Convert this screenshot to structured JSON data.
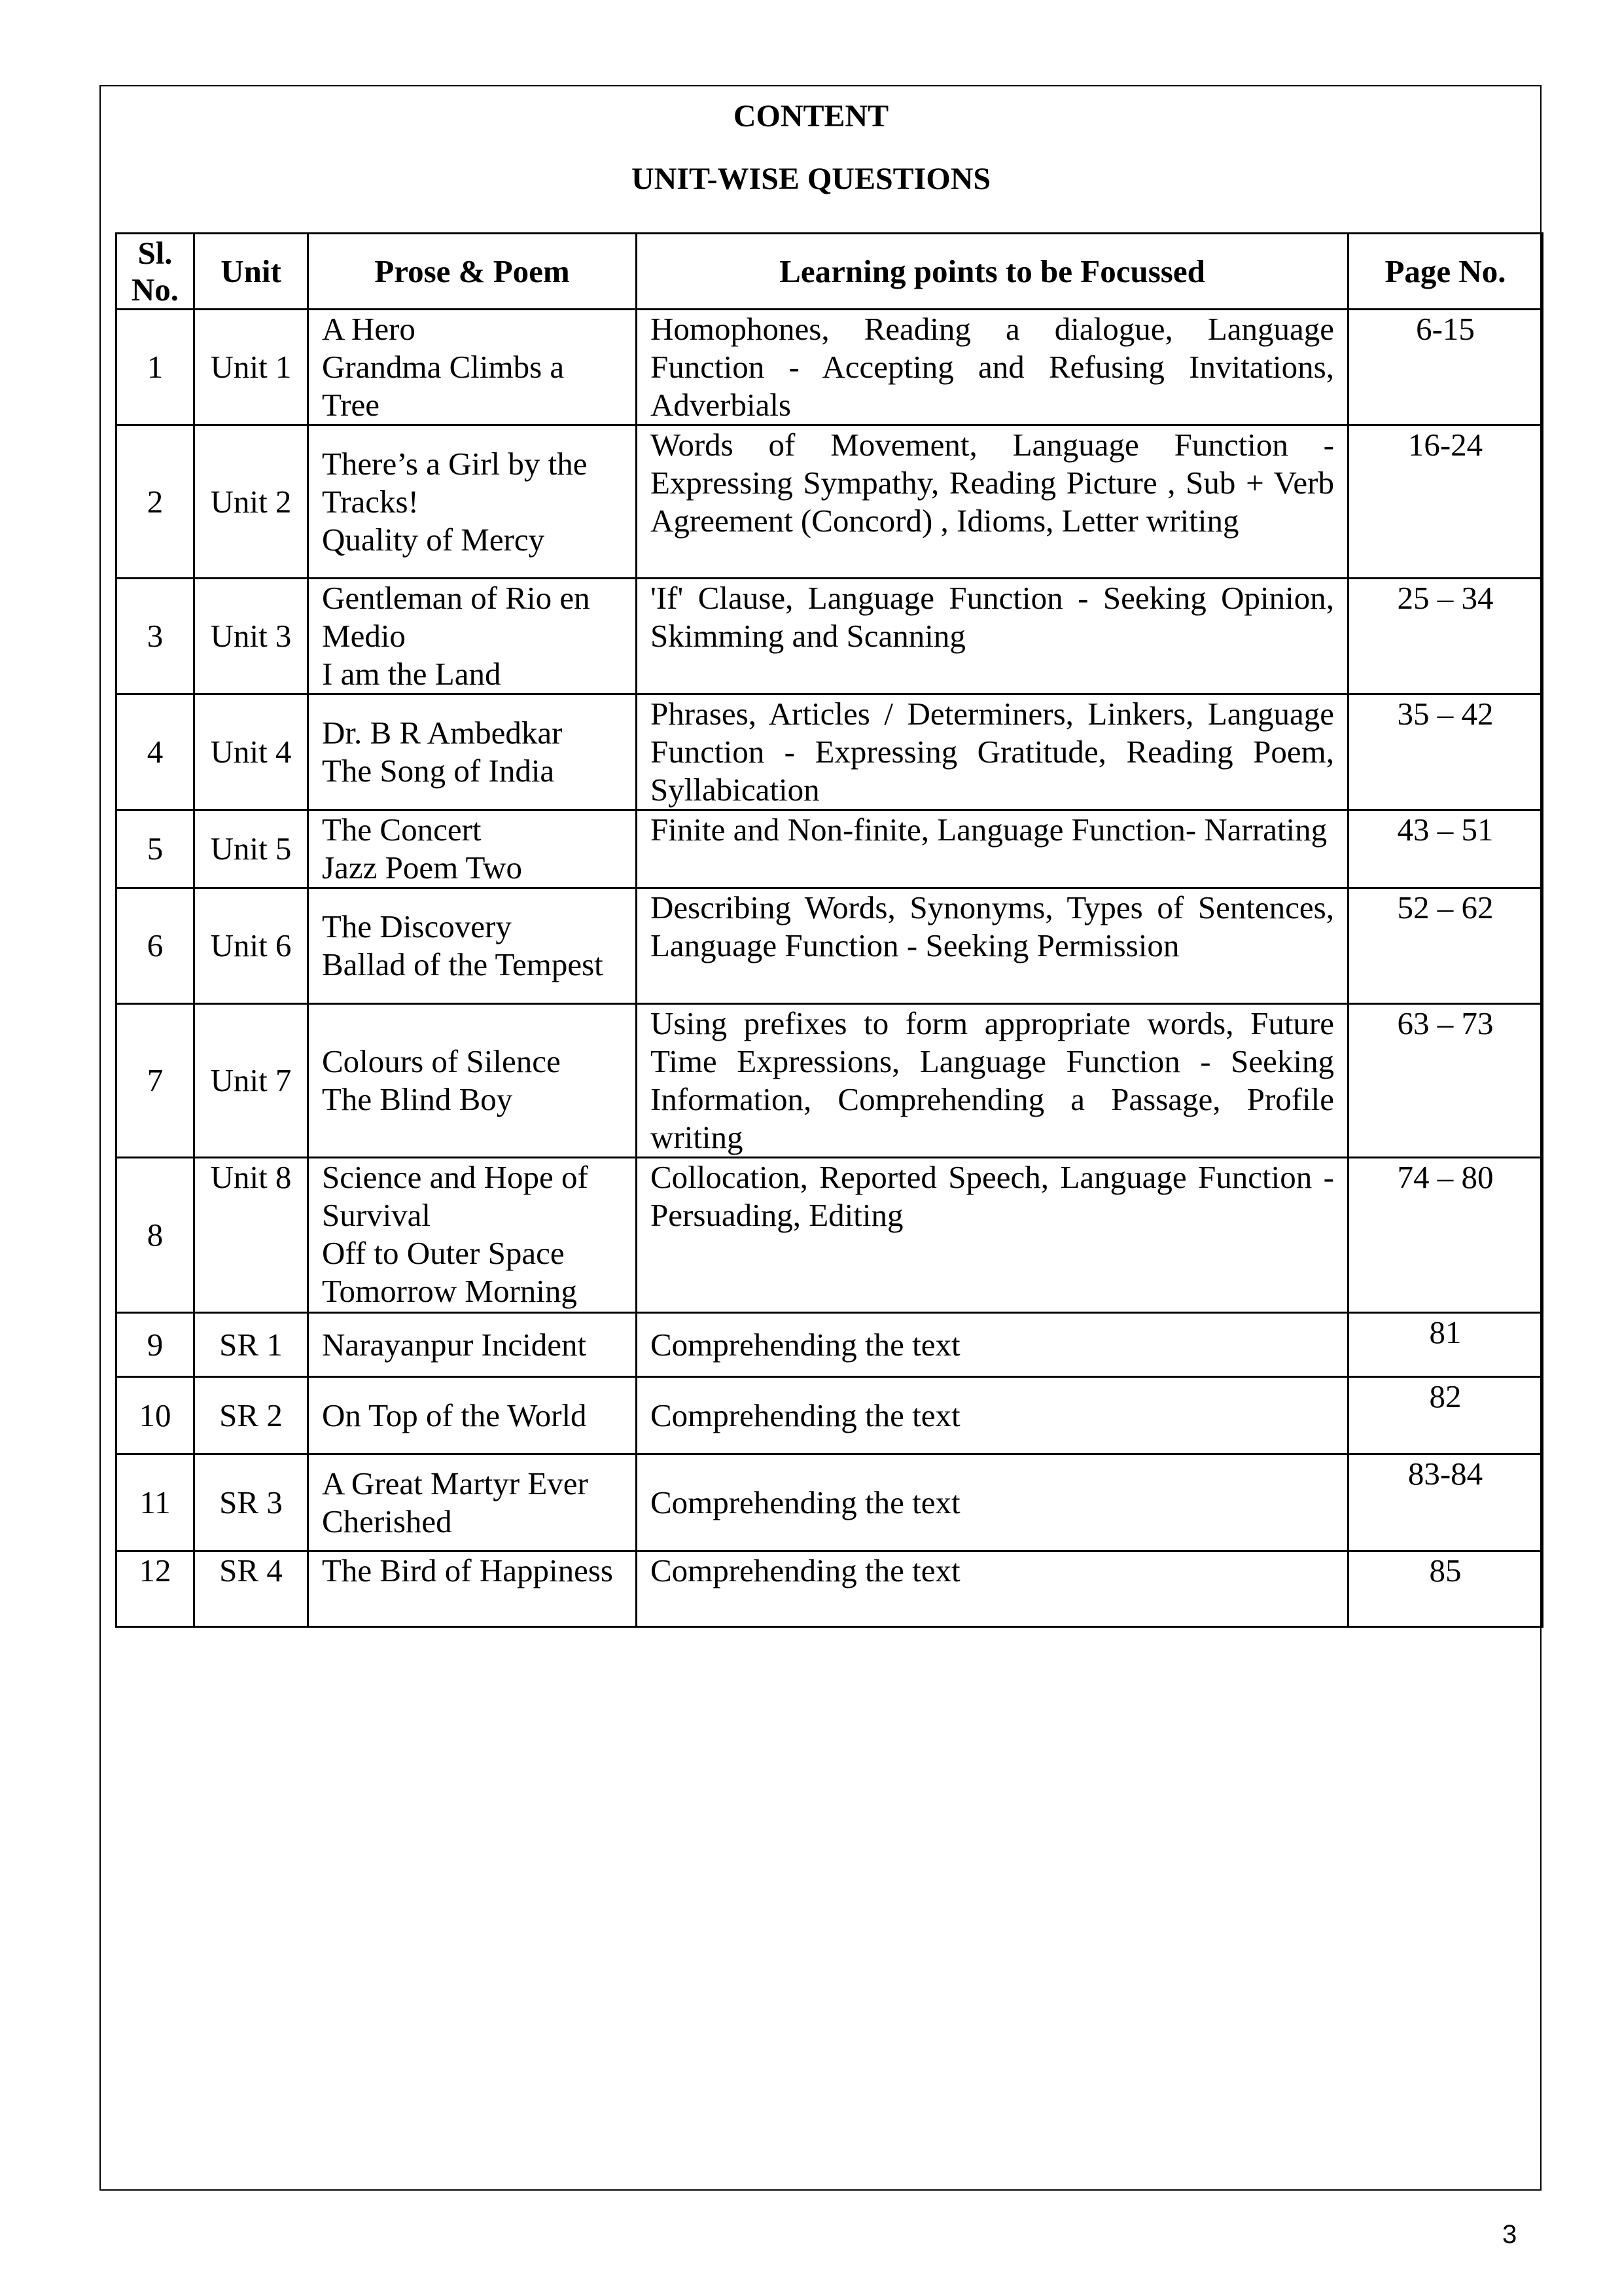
{
  "title": "CONTENT",
  "subtitle": "UNIT-WISE QUESTIONS",
  "table": {
    "headers": [
      "Sl. No.",
      "Unit",
      "Prose & Poem",
      "Learning points to be Focussed",
      "Page No."
    ],
    "rows": [
      {
        "sl": "1",
        "unit": "Unit 1",
        "prose": [
          "A Hero",
          "Grandma Climbs a Tree"
        ],
        "learning": "Homophones, Reading a dialogue, Language Function - Accepting and Refusing Invitations, Adverbials",
        "page": "6-15"
      },
      {
        "sl": "2",
        "unit": "Unit 2",
        "prose": [
          "There’s a Girl by the Tracks!",
          "Quality of Mercy"
        ],
        "learning": "Words of Movement,  Language Function - Expressing Sympathy, Reading Picture , Sub + Verb Agreement (Concord) , Idioms, Letter writing",
        "page": "16-24"
      },
      {
        "sl": "3",
        "unit": "Unit 3",
        "prose": [
          "Gentleman of Rio en Medio",
          "I am the Land"
        ],
        "learning": "'If' Clause, Language Function  - Seeking Opinion, Skimming and Scanning",
        "page": "25 – 34"
      },
      {
        "sl": "4",
        "unit": "Unit 4",
        "prose": [
          "Dr. B R Ambedkar",
          "The Song of India"
        ],
        "learning": "Phrases, Articles / Determiners,  Linkers, Language Function - Expressing Gratitude, Reading Poem, Syllabication",
        "page": "35 – 42"
      },
      {
        "sl": "5",
        "unit": "Unit 5",
        "prose": [
          "The Concert",
          "Jazz Poem Two"
        ],
        "learning": "Finite and Non-finite, Language Function- Narrating",
        "page": "43 – 51"
      },
      {
        "sl": "6",
        "unit": "Unit 6",
        "prose": [
          "The Discovery",
          "Ballad of the Tempest"
        ],
        "learning": "Describing Words, Synonyms, Types of Sentences, Language Function - Seeking Permission",
        "page": "52 – 62"
      },
      {
        "sl": "7",
        "unit": "Unit 7",
        "prose": [
          "Colours of Silence",
          "The Blind Boy"
        ],
        "learning": "Using prefixes to form appropriate words, Future Time Expressions,  Language Function - Seeking Information, Comprehending a Passage, Profile writing",
        "page": "63 – 73"
      },
      {
        "sl": "8",
        "unit": "Unit 8",
        "prose": [
          "Science and Hope of Survival",
          "Off to Outer Space",
          "Tomorrow Morning"
        ],
        "learning": "Collocation, Reported Speech,  Language Function - Persuading, Editing",
        "page": "74 – 80"
      },
      {
        "sl": "9",
        "unit": "SR 1",
        "prose": [
          "Narayanpur Incident"
        ],
        "learning": "Comprehending the text",
        "page": "81"
      },
      {
        "sl": "10",
        "unit": "SR 2",
        "prose": [
          "On Top of the World"
        ],
        "learning": "Comprehending the text",
        "page": "82"
      },
      {
        "sl": "11",
        "unit": "SR 3",
        "prose": [
          "A Great Martyr Ever Cherished"
        ],
        "learning": "Comprehending the text",
        "page": "83-84"
      },
      {
        "sl": "12",
        "unit": "SR 4",
        "prose": [
          "The Bird of Happiness"
        ],
        "learning": "Comprehending the text",
        "page": "85"
      }
    ]
  },
  "page_number": "3"
}
